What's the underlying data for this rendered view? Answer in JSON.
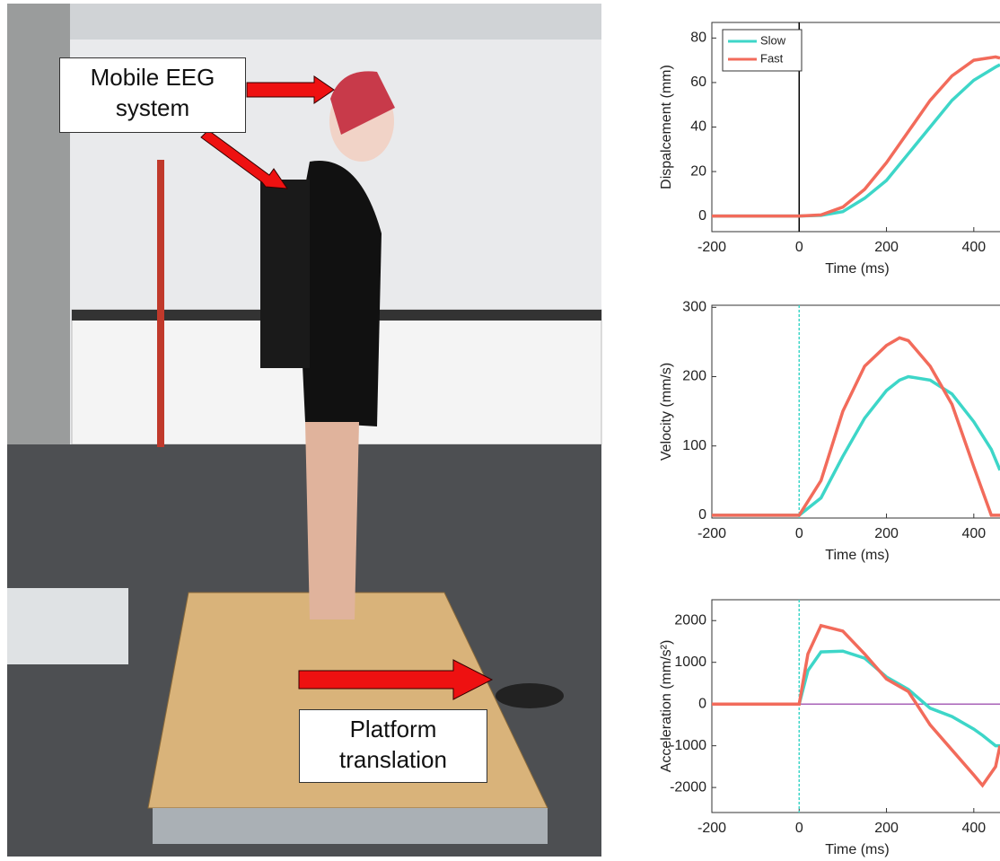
{
  "photo": {
    "labels": [
      "Mobile EEG system",
      "Platform translation"
    ]
  },
  "chart_data": [
    {
      "type": "line",
      "xlabel": "Time (ms)",
      "ylabel": "Dispalcement (mm)",
      "x": [
        -200,
        -100,
        0,
        50,
        100,
        150,
        200,
        250,
        300,
        350,
        400,
        450,
        460
      ],
      "series": [
        {
          "name": "Slow",
          "color": "#3dd6c8",
          "values": [
            0,
            0,
            0,
            0.3,
            2,
            8,
            16,
            28,
            40,
            52,
            61,
            67,
            68
          ]
        },
        {
          "name": "Fast",
          "color": "#f26b5b",
          "values": [
            0,
            0,
            0,
            0.5,
            4,
            12,
            24,
            38,
            52,
            63,
            70,
            71.5,
            71
          ]
        }
      ],
      "xlim": [
        -200,
        460
      ],
      "ylim": [
        -7,
        87
      ],
      "xticks": [
        -200,
        0,
        200,
        400
      ],
      "yticks": [
        0,
        20,
        40,
        60,
        80
      ],
      "legend": "upper left",
      "x_reference": 0,
      "x_reference_color": "#000000"
    },
    {
      "type": "line",
      "xlabel": "Time (ms)",
      "ylabel": "Velocity (mm/s)",
      "x": [
        -200,
        -100,
        0,
        50,
        100,
        150,
        200,
        230,
        250,
        300,
        350,
        400,
        440,
        460
      ],
      "series": [
        {
          "name": "Slow",
          "color": "#3dd6c8",
          "values": [
            0,
            0,
            0,
            25,
            85,
            140,
            180,
            195,
            200,
            195,
            175,
            135,
            95,
            65
          ]
        },
        {
          "name": "Fast",
          "color": "#f26b5b",
          "values": [
            0,
            0,
            0,
            50,
            150,
            215,
            245,
            256,
            252,
            215,
            160,
            70,
            0,
            0
          ]
        }
      ],
      "xlim": [
        -200,
        460
      ],
      "ylim": [
        -4,
        303
      ],
      "xticks": [
        -200,
        0,
        200,
        400
      ],
      "yticks": [
        0,
        100,
        200,
        300
      ],
      "x_reference": 0,
      "x_reference_color": "#3dd6c8"
    },
    {
      "type": "line",
      "xlabel": "Time (ms)",
      "ylabel": "Acceleration (mm/s²)",
      "x": [
        -200,
        -100,
        0,
        20,
        50,
        100,
        150,
        200,
        250,
        300,
        350,
        400,
        420,
        450,
        460
      ],
      "series": [
        {
          "name": "Slow",
          "color": "#3dd6c8",
          "values": [
            0,
            0,
            0,
            800,
            1250,
            1270,
            1100,
            650,
            350,
            -100,
            -300,
            -600,
            -750,
            -1000,
            -1000
          ]
        },
        {
          "name": "Fast",
          "color": "#f26b5b",
          "values": [
            0,
            0,
            0,
            1200,
            1880,
            1750,
            1200,
            600,
            300,
            -500,
            -1100,
            -1700,
            -1950,
            -1500,
            -1000
          ]
        }
      ],
      "xlim": [
        -200,
        460
      ],
      "ylim": [
        -2600,
        2500
      ],
      "xticks": [
        -200,
        0,
        200,
        400
      ],
      "yticks": [
        -2000,
        -1000,
        0,
        1000,
        2000
      ],
      "x_reference": 0,
      "x_reference_color": "#3dd6c8",
      "y_reference": 0,
      "y_reference_color": "#8b2fa0"
    }
  ]
}
